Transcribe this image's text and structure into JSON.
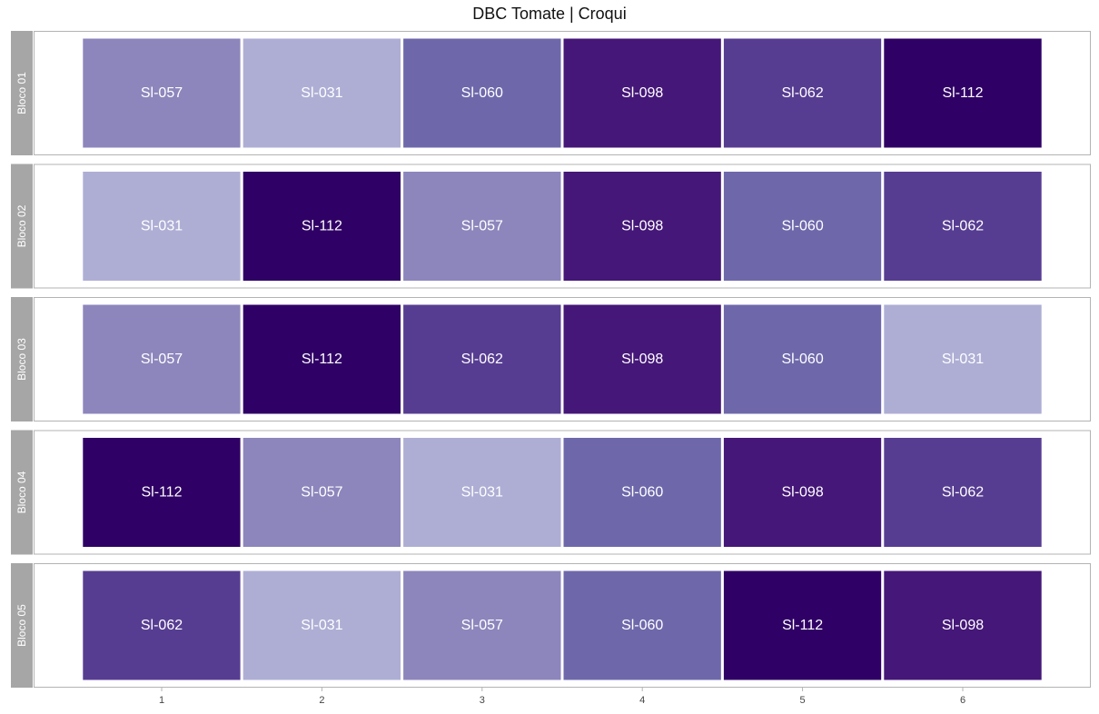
{
  "chart_data": {
    "type": "heatmap",
    "title": "DBC Tomate | Croqui",
    "xlabel": "",
    "ylabel": "",
    "x_ticks": [
      "1",
      "2",
      "3",
      "4",
      "5",
      "6"
    ],
    "legend": "none",
    "grid": false,
    "color_map": {
      "Sl-031": "#aeaed5",
      "Sl-057": "#8d86bc",
      "Sl-060": "#6e68ab",
      "Sl-062": "#573d92",
      "Sl-098": "#451778",
      "Sl-112": "#2f0065"
    },
    "blocks": [
      {
        "name": "Bloco 01",
        "cells": [
          "Sl-057",
          "Sl-031",
          "Sl-060",
          "Sl-098",
          "Sl-062",
          "Sl-112"
        ]
      },
      {
        "name": "Bloco 02",
        "cells": [
          "Sl-031",
          "Sl-112",
          "Sl-057",
          "Sl-098",
          "Sl-060",
          "Sl-062"
        ]
      },
      {
        "name": "Bloco 03",
        "cells": [
          "Sl-057",
          "Sl-112",
          "Sl-062",
          "Sl-098",
          "Sl-060",
          "Sl-031"
        ]
      },
      {
        "name": "Bloco 04",
        "cells": [
          "Sl-112",
          "Sl-057",
          "Sl-031",
          "Sl-060",
          "Sl-098",
          "Sl-062"
        ]
      },
      {
        "name": "Bloco 05",
        "cells": [
          "Sl-062",
          "Sl-031",
          "Sl-057",
          "Sl-060",
          "Sl-112",
          "Sl-098"
        ]
      }
    ]
  }
}
